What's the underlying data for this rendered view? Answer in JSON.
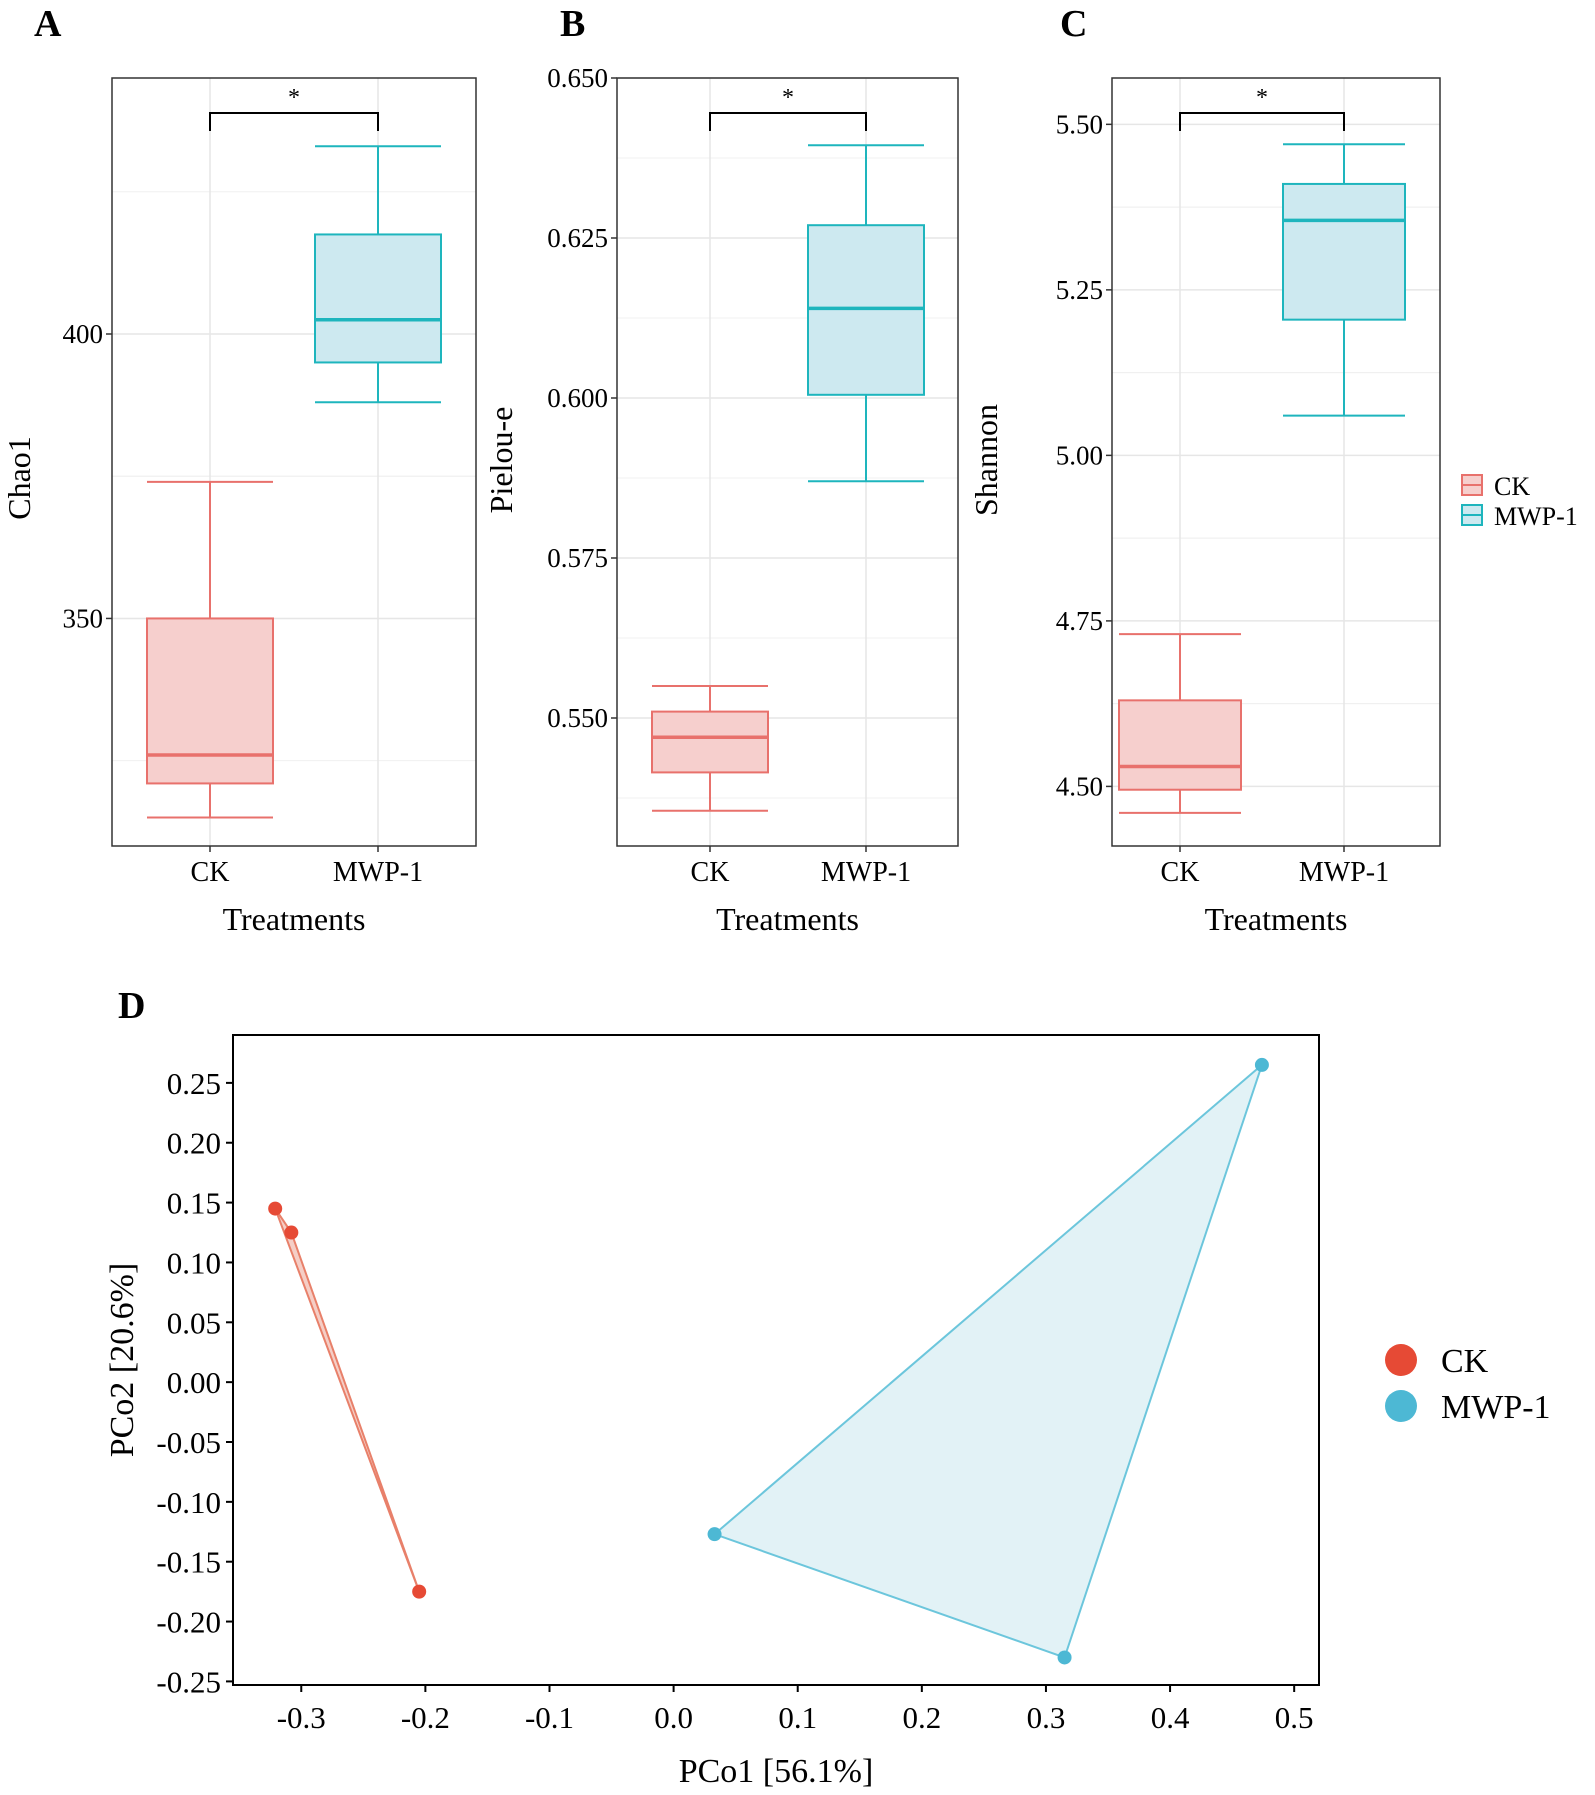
{
  "colors": {
    "ck_line": "#e8716c",
    "ck_fill": "#f6cfcd",
    "mwp_line": "#1eb5bd",
    "mwp_fill": "#cde9f0",
    "pcoa_ck": "#e64a35",
    "pcoa_ck_hull_line": "#e8806a",
    "pcoa_ck_hull_fill": "#f3c6bc",
    "pcoa_mwp": "#4db8d4",
    "pcoa_mwp_hull_line": "#6cc6dc",
    "pcoa_mwp_hull_fill": "#ddf0f5",
    "grid": "#e6e6e6"
  },
  "box_legend": {
    "items": [
      "CK",
      "MWP-1"
    ]
  },
  "pcoa_legend": {
    "items": [
      "CK",
      "MWP-1"
    ]
  },
  "chart_data": [
    {
      "panel": "A",
      "type": "box",
      "xlabel": "Treatments",
      "ylabel": "Chao1",
      "categories": [
        "CK",
        "MWP-1"
      ],
      "ylim": [
        310,
        445
      ],
      "yticks": [
        350,
        400
      ],
      "ytick_labels": [
        "350",
        "400"
      ],
      "boxes": [
        {
          "name": "CK",
          "whisker_low": 315,
          "q1": 321,
          "median": 326,
          "q3": 350,
          "whisker_high": 374
        },
        {
          "name": "MWP-1",
          "whisker_low": 388,
          "q1": 395,
          "median": 402.5,
          "q3": 417.5,
          "whisker_high": 433
        }
      ],
      "significance": "*"
    },
    {
      "panel": "B",
      "type": "box",
      "xlabel": "Treatments",
      "ylabel": "Pielou-e",
      "categories": [
        "CK",
        "MWP-1"
      ],
      "ylim": [
        0.53,
        0.65
      ],
      "yticks": [
        0.55,
        0.575,
        0.6,
        0.625,
        0.65
      ],
      "ytick_labels": [
        "0.550",
        "0.575",
        "0.600",
        "0.625",
        "0.650"
      ],
      "boxes": [
        {
          "name": "CK",
          "whisker_low": 0.5355,
          "q1": 0.5415,
          "median": 0.547,
          "q3": 0.551,
          "whisker_high": 0.555
        },
        {
          "name": "MWP-1",
          "whisker_low": 0.587,
          "q1": 0.6005,
          "median": 0.614,
          "q3": 0.627,
          "whisker_high": 0.6395
        }
      ],
      "significance": "*"
    },
    {
      "panel": "C",
      "type": "box",
      "xlabel": "Treatments",
      "ylabel": "Shannon",
      "categories": [
        "CK",
        "MWP-1"
      ],
      "ylim": [
        4.41,
        5.57
      ],
      "yticks": [
        4.5,
        4.75,
        5.0,
        5.25,
        5.5
      ],
      "ytick_labels": [
        "4.50",
        "4.75",
        "5.00",
        "5.25",
        "5.50"
      ],
      "boxes": [
        {
          "name": "CK",
          "whisker_low": 4.46,
          "q1": 4.495,
          "median": 4.53,
          "q3": 4.63,
          "whisker_high": 4.73
        },
        {
          "name": "MWP-1",
          "whisker_low": 5.06,
          "q1": 5.205,
          "median": 5.355,
          "q3": 5.41,
          "whisker_high": 5.47
        }
      ],
      "significance": "*"
    },
    {
      "panel": "D",
      "type": "scatter",
      "xlabel": "PCo1 [56.1%]",
      "ylabel": "PCo2 [20.6%]",
      "xlim": [
        -0.355,
        0.52
      ],
      "ylim": [
        -0.253,
        0.29
      ],
      "xticks": [
        -0.3,
        -0.2,
        -0.1,
        0.0,
        0.1,
        0.2,
        0.3,
        0.4,
        0.5
      ],
      "xtick_labels": [
        "-0.3",
        "-0.2",
        "-0.1",
        "0.0",
        "0.1",
        "0.2",
        "0.3",
        "0.4",
        "0.5"
      ],
      "yticks": [
        0.25,
        0.2,
        0.15,
        0.1,
        0.05,
        0.0,
        -0.05,
        -0.1,
        -0.15,
        -0.2,
        -0.25
      ],
      "ytick_labels": [
        "0.25",
        "0.20",
        "0.15",
        "0.10",
        "0.05",
        "0.00",
        "-0.05",
        "-0.10",
        "-0.15",
        "-0.20",
        "-0.25"
      ],
      "series": [
        {
          "name": "CK",
          "points": [
            [
              -0.321,
              0.145
            ],
            [
              -0.308,
              0.125
            ],
            [
              -0.205,
              -0.175
            ]
          ]
        },
        {
          "name": "MWP-1",
          "points": [
            [
              0.474,
              0.265
            ],
            [
              0.033,
              -0.127
            ],
            [
              0.315,
              -0.23
            ]
          ]
        }
      ]
    }
  ]
}
